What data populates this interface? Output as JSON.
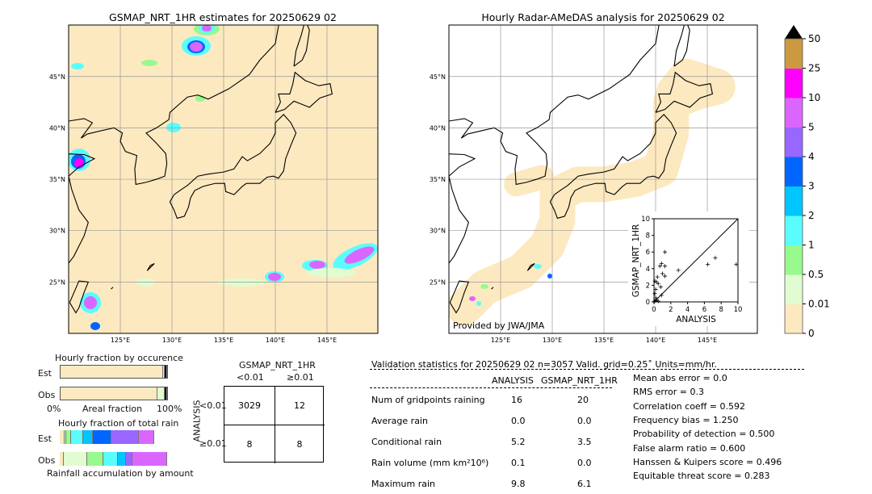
{
  "left_map": {
    "title": "GSMAP_NRT_1HR estimates for 20250629 02"
  },
  "right_map": {
    "title": "Hourly Radar-AMeDAS analysis for 20250629 02",
    "credit": "Provided by JWA/JMA"
  },
  "lon_labels": [
    "125°E",
    "130°E",
    "135°E",
    "140°E",
    "145°E"
  ],
  "lat_labels": [
    "45°N",
    "40°N",
    "35°N",
    "30°N",
    "25°N"
  ],
  "colorbar": {
    "labels": [
      "0",
      "0.01",
      "0.5",
      "1",
      "2",
      "3",
      "4",
      "5",
      "10",
      "25",
      "50"
    ],
    "colors": [
      "#fde9c0",
      "#e1fcd0",
      "#98f98d",
      "#5afdfd",
      "#00c5ff",
      "#0066ff",
      "#9966ff",
      "#da66ff",
      "#ff00ff",
      "#cc9940"
    ],
    "extend_color": "#000000"
  },
  "chart_data": {
    "type": "scatter",
    "xlabel": "ANALYSIS",
    "ylabel": "GSMAP_NRT_1HR",
    "xlim": [
      0,
      10
    ],
    "ylim": [
      0,
      10
    ],
    "xticks": [
      "0",
      "2",
      "4",
      "6",
      "8",
      "10"
    ],
    "yticks": [
      "0",
      "2",
      "4",
      "6",
      "8",
      "10"
    ],
    "points": [
      [
        1.3,
        6.0
      ],
      [
        0.9,
        4.6
      ],
      [
        0.7,
        4.3
      ],
      [
        1.3,
        4.3
      ],
      [
        1.0,
        3.4
      ],
      [
        1.3,
        3.1
      ],
      [
        0.4,
        3.0
      ],
      [
        0.3,
        2.4
      ],
      [
        0.5,
        2.2
      ],
      [
        0.1,
        2.5
      ],
      [
        0.8,
        1.8
      ],
      [
        2.9,
        3.8
      ],
      [
        6.4,
        4.5
      ],
      [
        7.3,
        5.3
      ],
      [
        9.8,
        4.5
      ],
      [
        0.2,
        1.5
      ],
      [
        0.1,
        1.0
      ],
      [
        0.2,
        0.5
      ],
      [
        0.3,
        0.2
      ],
      [
        0.5,
        0.1
      ],
      [
        0.9,
        0.8
      ],
      [
        0.1,
        0.1
      ]
    ]
  },
  "occurrence": {
    "title": "Hourly fraction by occurence",
    "est_label": "Est",
    "obs_label": "Obs",
    "x0": "0%",
    "x1": "100%",
    "xlabel": "Areal fraction",
    "est": [
      {
        "c": "#fde9c0",
        "f": 98
      },
      {
        "c": "#e1fcd0",
        "f": 0.5
      },
      {
        "c": "#111111",
        "f": 1.5
      }
    ],
    "obs": [
      {
        "c": "#fde9c0",
        "f": 92
      },
      {
        "c": "#e1fcd0",
        "f": 6.5
      },
      {
        "c": "#111111",
        "f": 1.5
      }
    ]
  },
  "total_rain": {
    "title": "Hourly fraction of total rain",
    "est_label": "Est",
    "obs_label": "Obs",
    "xlabel": "Rainfall accumulation by amount",
    "est": [
      {
        "c": "#fde9c0",
        "f": 3.5
      },
      {
        "c": "#e1fcd0",
        "f": 1
      },
      {
        "c": "#98f98d",
        "f": 4
      },
      {
        "c": "#5afdfd",
        "f": 10.5
      },
      {
        "c": "#00c5ff",
        "f": 8.3
      },
      {
        "c": "#0066ff",
        "f": 16
      },
      {
        "c": "#9966ff",
        "f": 25.3
      },
      {
        "c": "#da66ff",
        "f": 13.3
      }
    ],
    "obs": [
      {
        "c": "#fde9c0",
        "f": 3.5
      },
      {
        "c": "#e1fcd0",
        "f": 22
      },
      {
        "c": "#98f98d",
        "f": 15
      },
      {
        "c": "#5afdfd",
        "f": 13.3
      },
      {
        "c": "#00c5ff",
        "f": 7
      },
      {
        "c": "#9966ff",
        "f": 5.5
      },
      {
        "c": "#da66ff",
        "f": 33.7
      }
    ]
  },
  "contingency": {
    "title": "GSMAP_NRT_1HR",
    "col1": "<0.01",
    "col2": "≥0.01",
    "row_axis": "ANALYSIS",
    "row1": "<0.01",
    "row2": "≥0.01",
    "cells": [
      "3029",
      "12",
      "8",
      "8"
    ]
  },
  "validation": {
    "header": "Validation statistics for 20250629 02  n=3057 Valid. grid=0.25˚ Units=mm/hr.",
    "col1": "ANALYSIS",
    "col2": "GSMAP_NRT_1HR",
    "rows": [
      {
        "label": "Num of gridpoints raining",
        "a": "16",
        "g": "20"
      },
      {
        "label": "Average rain",
        "a": "0.0",
        "g": "0.0"
      },
      {
        "label": "Conditional rain",
        "a": "5.2",
        "g": "3.5"
      },
      {
        "label": "Rain volume (mm km²10⁶)",
        "a": "0.1",
        "g": "0.0"
      },
      {
        "label": "Maximum rain",
        "a": "9.8",
        "g": "6.1"
      }
    ],
    "scores": [
      "Mean abs error =    0.0",
      "RMS error =    0.3",
      "Correlation coeff =  0.592",
      "Frequency bias =  1.250",
      "Probability of detection =  0.500",
      "False alarm ratio =  0.600",
      "Hanssen & Kuipers score =  0.496",
      "Equitable threat score =  0.283"
    ]
  }
}
